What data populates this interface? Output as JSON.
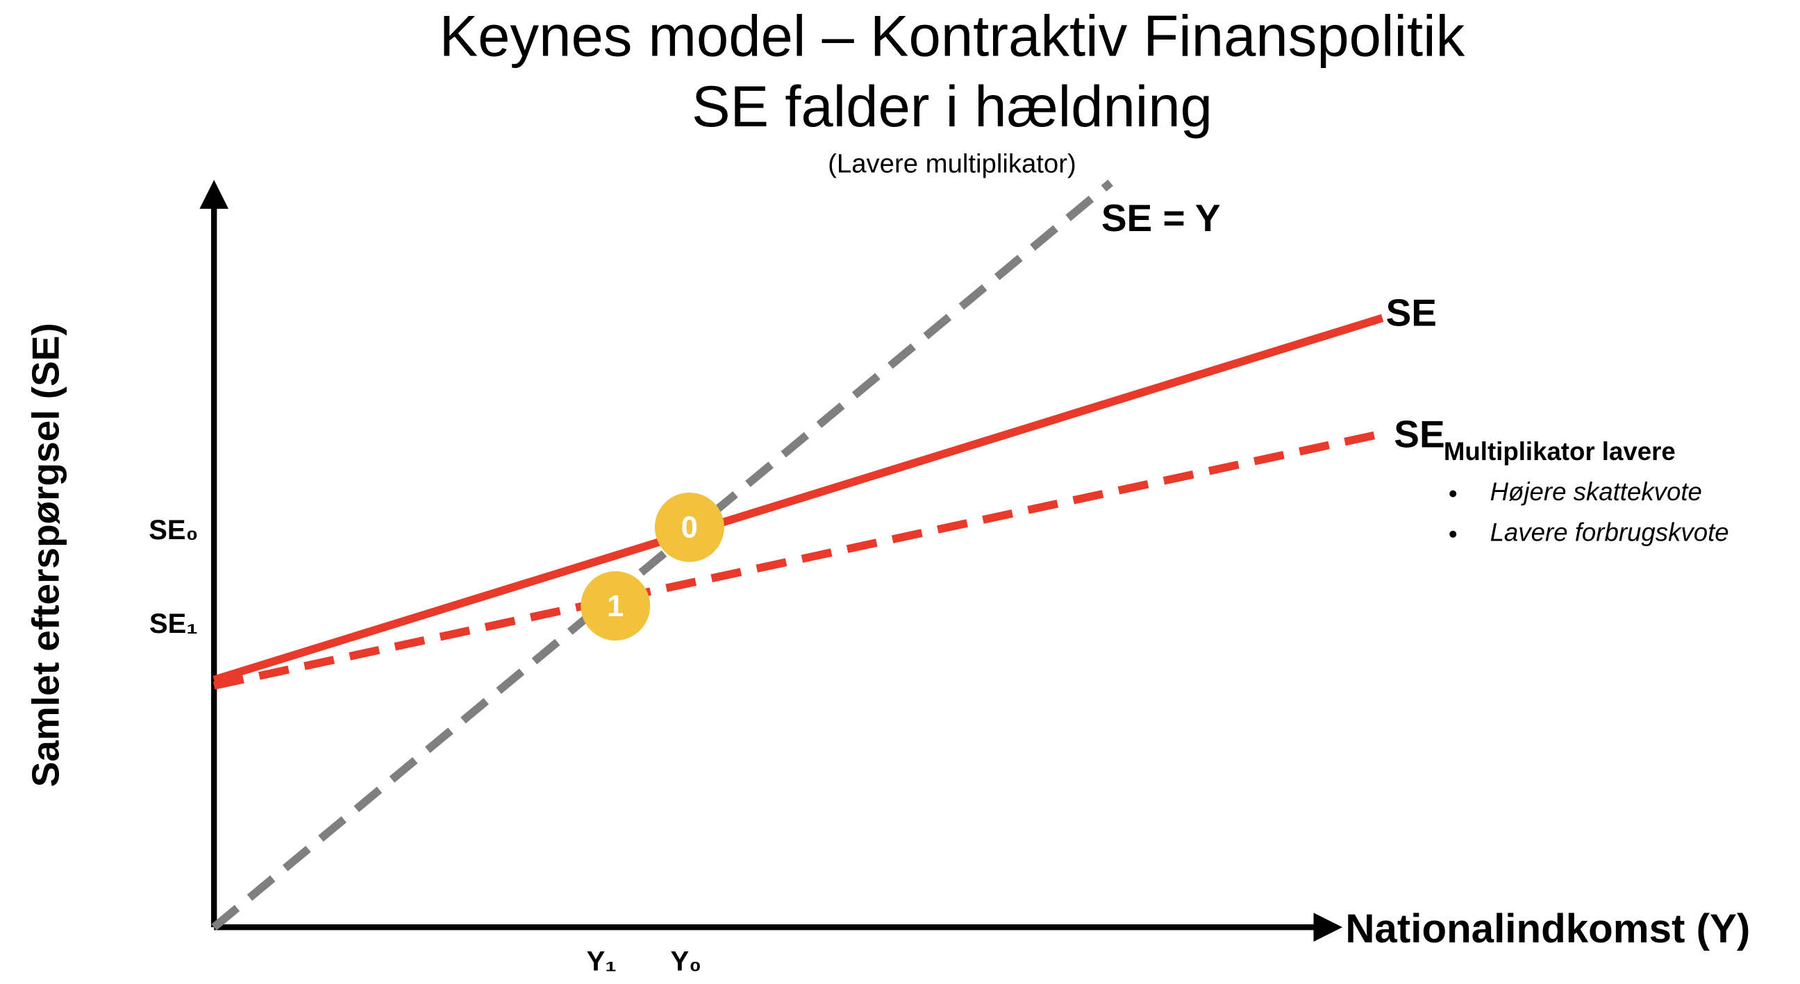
{
  "title_lines": [
    "Keynes model – Kontraktiv Finanspolitik",
    "SE falder i hældning"
  ],
  "subtitle": "(Lavere multiplikator)",
  "axes": {
    "y_label": "Samlet efterspørgsel (SE)",
    "x_label": "Nationalindkomst (Y)",
    "y_marks": [
      "SE₀",
      "SE₁"
    ],
    "x_marks": [
      "Y₁",
      "Y₀"
    ]
  },
  "lines": {
    "identity": "SE = Y",
    "original": "SE",
    "new_main": "SE",
    "new_sub": "Multiplikator lavere"
  },
  "bullets": [
    "Højere skattekvote",
    "Lavere forbrugskvote"
  ],
  "points": [
    "0",
    "1"
  ]
}
